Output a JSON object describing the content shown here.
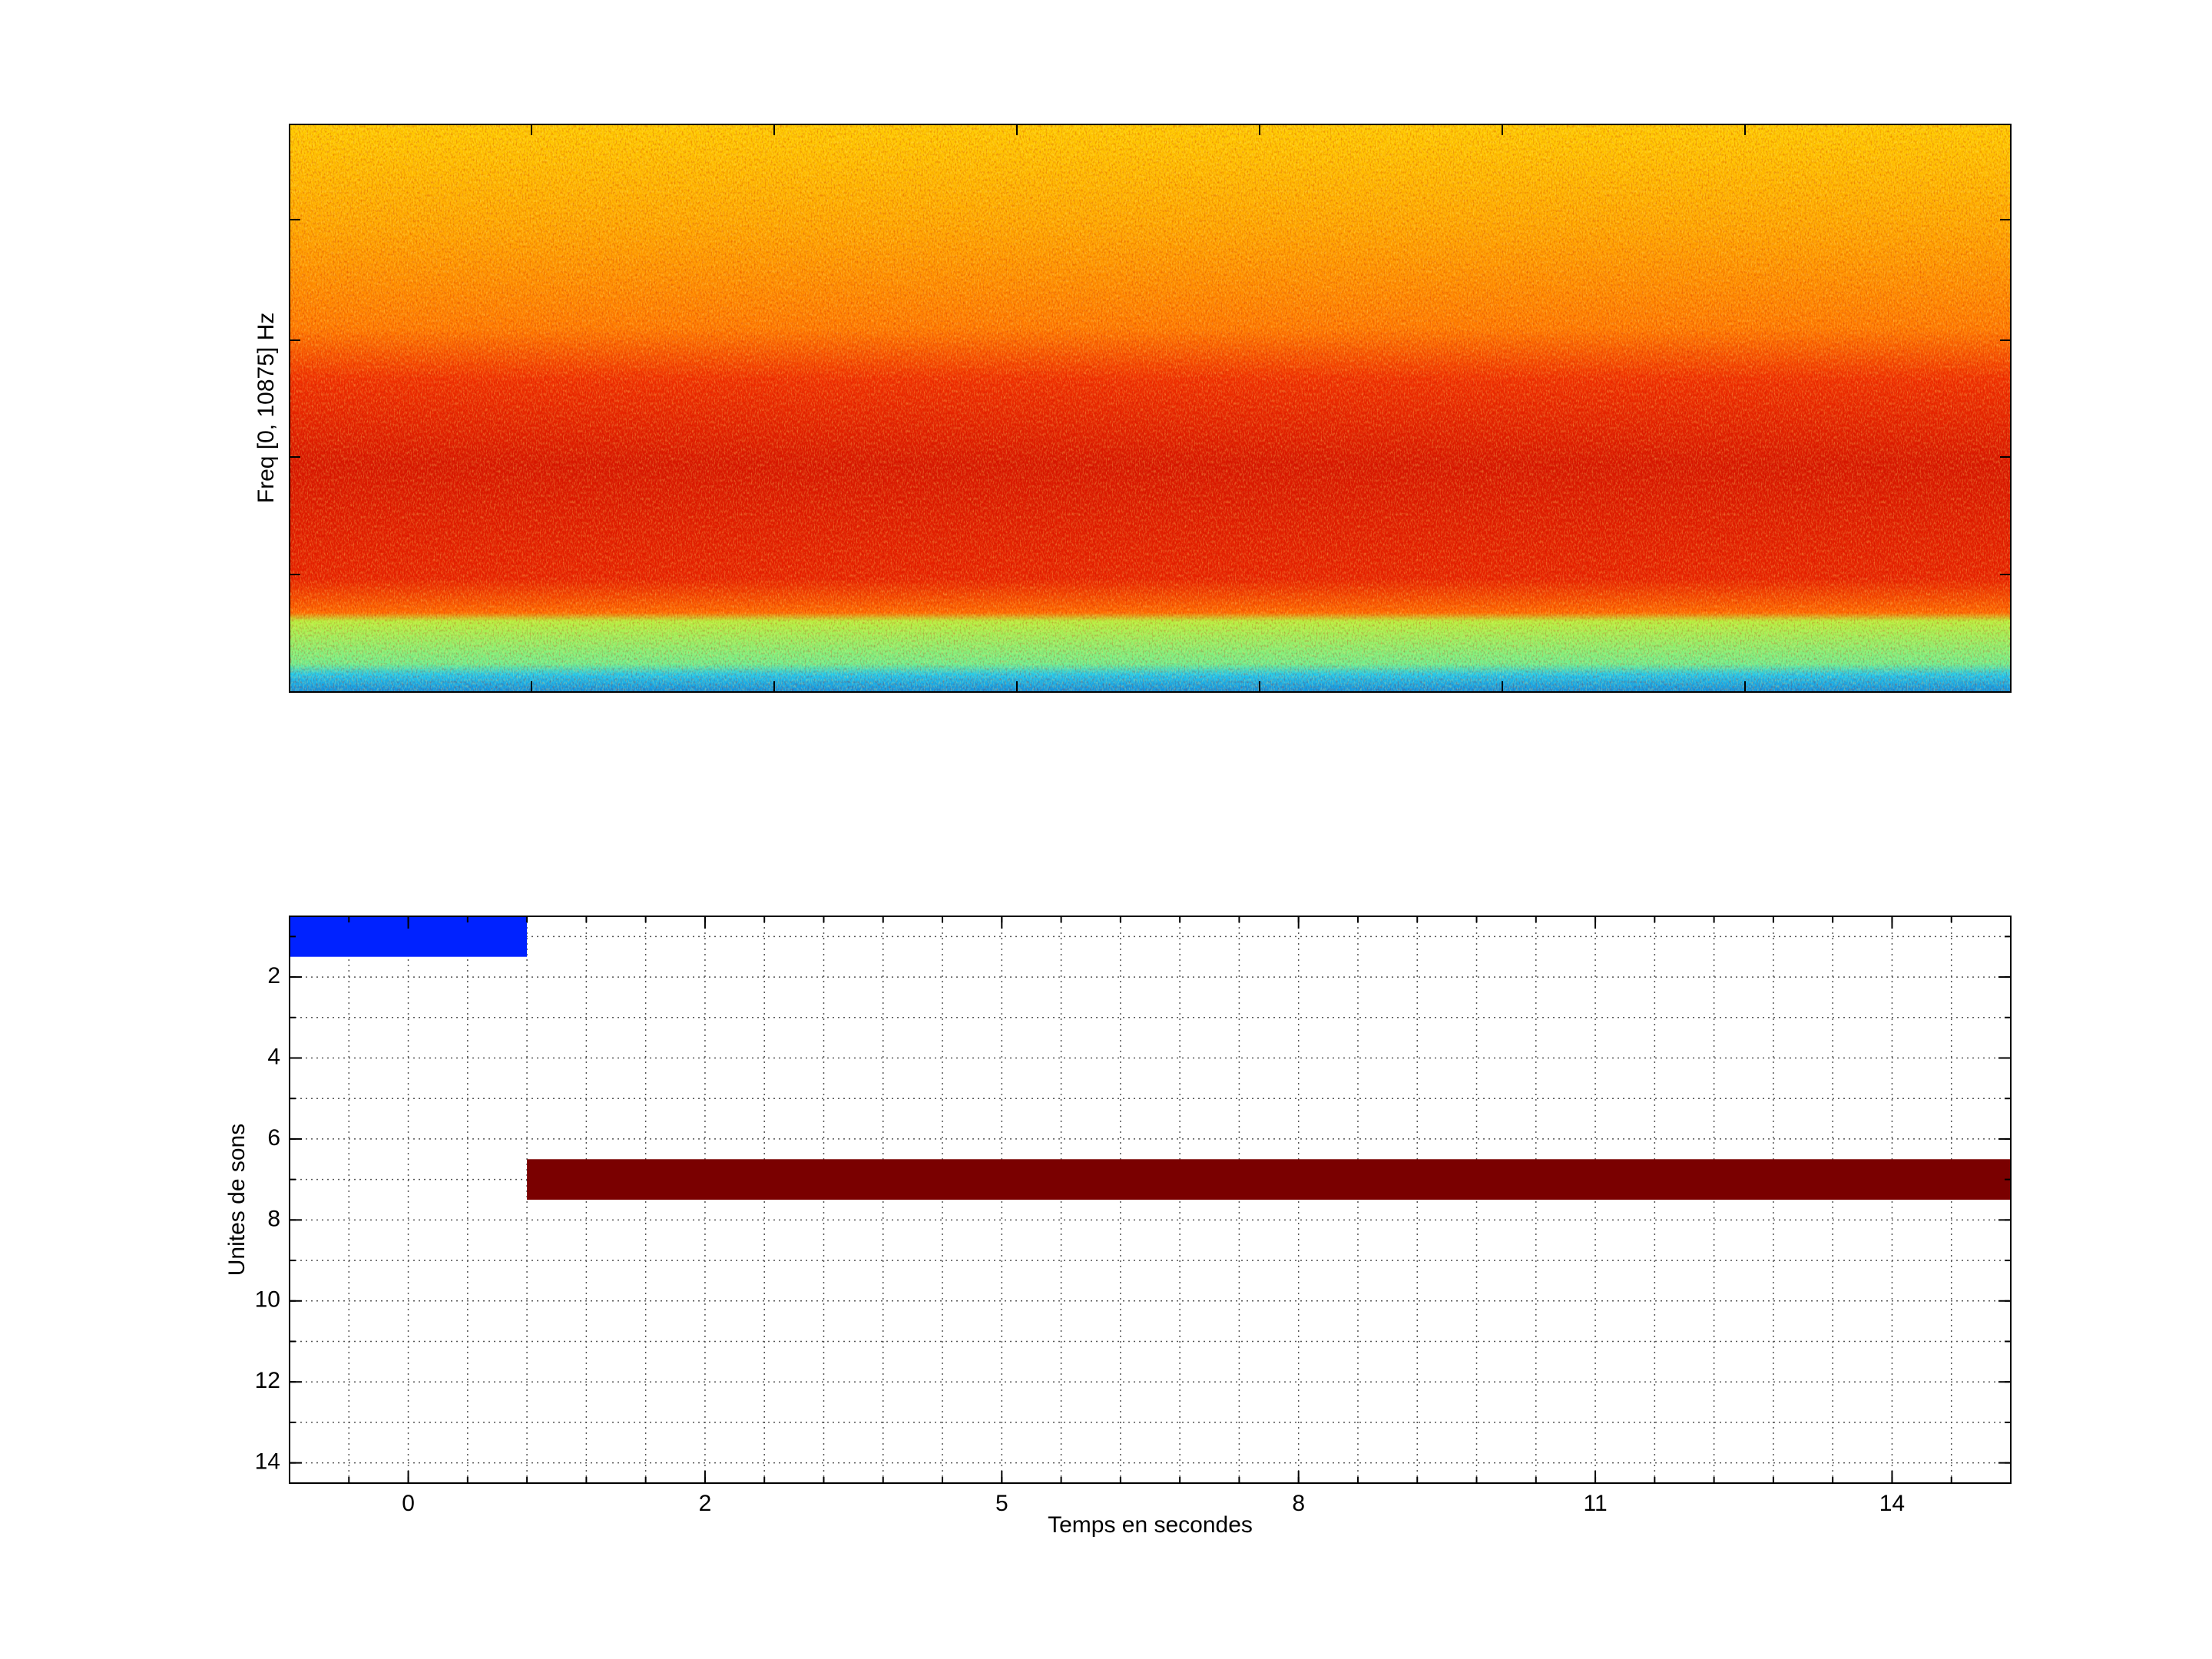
{
  "chart_data": [
    {
      "type": "spectrogram",
      "ylabel": "Freq [0, 10875] Hz"
    },
    {
      "type": "gantt",
      "xlabel": "Temps en secondes",
      "ylabel": "Unites de sons",
      "xlim": [
        -2,
        27
      ],
      "xticks": [
        0,
        {
          "value": 5,
          "label": "2"
        },
        {
          "value": 10,
          "label": "5"
        },
        {
          "value": 15,
          "label": "8"
        },
        {
          "value": 20,
          "label": "11"
        },
        {
          "value": 25,
          "label": "14"
        }
      ],
      "xminor": [
        -1,
        0,
        1,
        2,
        3,
        4,
        5,
        6,
        7,
        8,
        9,
        10,
        11,
        12,
        13,
        14,
        15,
        16,
        17,
        18,
        19,
        20,
        21,
        22,
        23,
        24,
        25,
        26
      ],
      "ylim": [
        0.5,
        14.5
      ],
      "yreversed": true,
      "yticks": [
        2,
        4,
        6,
        8,
        10,
        12,
        14
      ],
      "yminor": [
        1,
        2,
        3,
        4,
        5,
        6,
        7,
        8,
        9,
        10,
        11,
        12,
        13,
        14
      ],
      "grid": true,
      "bars": [
        {
          "row": 1,
          "start": -2,
          "end": 2,
          "color": "#0022ff"
        },
        {
          "row": 7,
          "start": 2,
          "end": 27,
          "color": "#7a0000"
        }
      ]
    }
  ]
}
